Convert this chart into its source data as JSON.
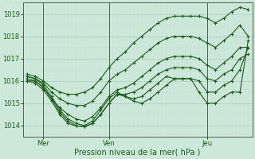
{
  "bg_color": "#cce8d8",
  "grid_color_major": "#b8d4c8",
  "grid_color_minor": "#d8ece4",
  "line_color": "#1a5c1a",
  "xlabel": "Pression niveau de la mer( hPa )",
  "xlabel_color": "#1a5c1a",
  "tick_color": "#1a5c1a",
  "ylim": [
    1013.5,
    1019.5
  ],
  "yticks": [
    1014,
    1015,
    1016,
    1017,
    1018,
    1019
  ],
  "xtick_labels": [
    "Mer",
    "Ven",
    "Jeu"
  ],
  "xtick_positions": [
    2,
    10,
    22
  ],
  "vline_positions": [
    2,
    10,
    22
  ],
  "series": [
    [
      1016.2,
      1016.1,
      1015.8,
      1015.3,
      1014.7,
      1014.3,
      1014.1,
      1014.0,
      1014.2,
      1014.7,
      1015.2,
      1015.5,
      1015.3,
      1015.1,
      1015.0,
      1015.2,
      1015.5,
      1015.8,
      1016.1,
      1016.1,
      1016.1,
      1015.5,
      1015.0,
      1015.0,
      1015.3,
      1015.5,
      1015.5,
      1017.8
    ],
    [
      1016.0,
      1016.0,
      1015.7,
      1015.2,
      1014.6,
      1014.2,
      1014.0,
      1013.95,
      1014.1,
      1014.5,
      1015.0,
      1015.4,
      1015.3,
      1015.2,
      1015.3,
      1015.6,
      1015.9,
      1016.2,
      1016.1,
      1016.1,
      1016.1,
      1016.0,
      1015.5,
      1015.5,
      1015.8,
      1016.0,
      1016.5,
      1017.5
    ],
    [
      1016.0,
      1015.9,
      1015.6,
      1015.1,
      1014.5,
      1014.1,
      1013.98,
      1013.95,
      1014.1,
      1014.5,
      1015.0,
      1015.4,
      1015.4,
      1015.5,
      1015.7,
      1016.0,
      1016.3,
      1016.5,
      1016.6,
      1016.6,
      1016.6,
      1016.5,
      1016.1,
      1016.0,
      1016.3,
      1016.5,
      1017.0,
      1017.2
    ],
    [
      1016.1,
      1016.0,
      1015.7,
      1015.2,
      1014.8,
      1014.5,
      1014.3,
      1014.2,
      1014.4,
      1014.8,
      1015.3,
      1015.6,
      1015.7,
      1015.9,
      1016.2,
      1016.5,
      1016.8,
      1017.0,
      1017.1,
      1017.1,
      1017.1,
      1017.0,
      1016.7,
      1016.5,
      1016.8,
      1017.1,
      1017.5,
      1017.5
    ],
    [
      1016.2,
      1016.1,
      1015.9,
      1015.5,
      1015.2,
      1015.0,
      1014.9,
      1014.9,
      1015.1,
      1015.5,
      1016.0,
      1016.3,
      1016.5,
      1016.8,
      1017.1,
      1017.4,
      1017.7,
      1017.9,
      1018.0,
      1018.0,
      1018.0,
      1017.9,
      1017.7,
      1017.5,
      1017.8,
      1018.1,
      1018.5,
      1018.0
    ],
    [
      1016.3,
      1016.2,
      1016.0,
      1015.7,
      1015.5,
      1015.4,
      1015.4,
      1015.5,
      1015.7,
      1016.1,
      1016.6,
      1017.0,
      1017.3,
      1017.7,
      1018.0,
      1018.3,
      1018.6,
      1018.8,
      1018.9,
      1018.9,
      1018.9,
      1018.9,
      1018.8,
      1018.6,
      1018.8,
      1019.1,
      1019.3,
      1019.2
    ]
  ]
}
